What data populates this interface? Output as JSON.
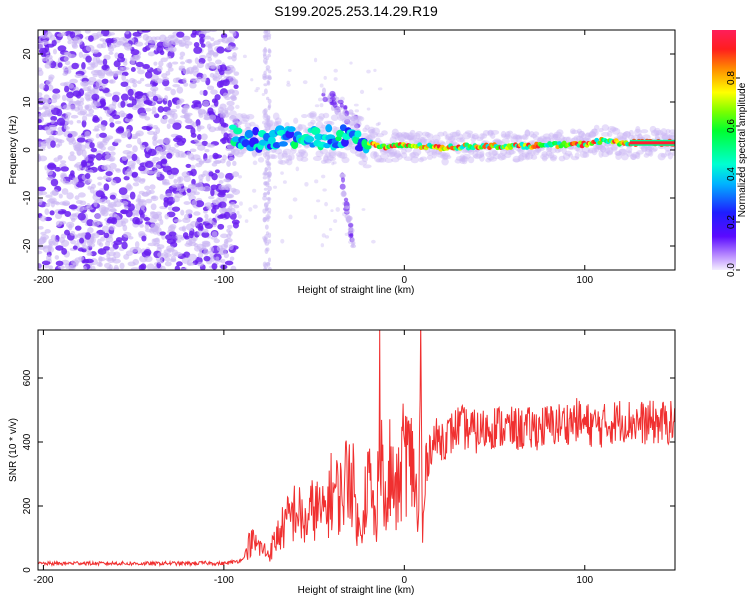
{
  "figure_title": "S199.2025.253.14.29.R19",
  "colors": {
    "snr_line": "#f03030",
    "weak": "#c9b6f3",
    "strong": "#6a1ef0",
    "axis": "#000000"
  },
  "chart_data": [
    {
      "type": "heatmap",
      "title": "",
      "xlabel": "Height of straight line (km)",
      "ylabel": "Frequency (Hz)",
      "xlim": [
        -203,
        150
      ],
      "ylim": [
        -25,
        25
      ],
      "xticks": [
        -200,
        -100,
        0,
        100
      ],
      "xtick_labels": [
        "-200",
        "-100",
        "0",
        "100"
      ],
      "yticks": [
        20,
        10,
        0,
        -10,
        -20
      ],
      "ytick_labels": [
        "20",
        "10",
        "0",
        "-10",
        "-20"
      ],
      "colorbar": {
        "label": "Normalized spectral amplitude",
        "range": [
          0,
          1
        ],
        "ticks": [
          0.0,
          0.2,
          0.4,
          0.6,
          0.8
        ],
        "tick_labels": [
          "0.0",
          "0.2",
          "0.4",
          "0.6",
          "0.8"
        ]
      },
      "features": [
        {
          "name": "noise-region",
          "x_range": [
            -203,
            -93
          ],
          "f_range": [
            -25,
            25
          ],
          "amplitude": "low 0.0-0.1"
        },
        {
          "name": "vertical-streak",
          "x": -76,
          "f_range": [
            -25,
            25
          ],
          "amplitude": "low"
        },
        {
          "name": "doppler-trace",
          "x": [
            -95,
            -80,
            -60,
            -45,
            -30,
            -20,
            -10,
            0,
            20,
            40,
            60,
            80,
            100,
            110,
            120,
            150
          ],
          "f": [
            3,
            2,
            2.5,
            2.5,
            3,
            1.5,
            0.5,
            1,
            0.5,
            0.8,
            0.8,
            1,
            1.2,
            2,
            1.5,
            1.5
          ],
          "amplitude": "0.2-1.0"
        },
        {
          "name": "faint-diagonal",
          "x": [
            -45,
            -25
          ],
          "f": [
            12,
            5
          ],
          "amplitude": "low"
        },
        {
          "name": "lower-branch",
          "x": [
            -35,
            -28
          ],
          "f": [
            -5,
            -20
          ],
          "amplitude": "low"
        }
      ]
    },
    {
      "type": "line",
      "title": "",
      "xlabel": "Height of straight line (km)",
      "ylabel": "SNR (10 * v/v)",
      "xlim": [
        -203,
        150
      ],
      "ylim": [
        0,
        750
      ],
      "xticks": [
        -200,
        -100,
        0,
        100
      ],
      "xtick_labels": [
        "-200",
        "-100",
        "0",
        "100"
      ],
      "yticks": [
        0,
        200,
        400,
        600
      ],
      "ytick_labels": [
        "0",
        "200",
        "400",
        "600"
      ],
      "series": [
        {
          "name": "SNR",
          "x": [
            -203,
            -190,
            -180,
            -170,
            -160,
            -150,
            -140,
            -130,
            -120,
            -110,
            -100,
            -95,
            -90,
            -85,
            -80,
            -75,
            -70,
            -65,
            -60,
            -55,
            -50,
            -45,
            -40,
            -35,
            -30,
            -25,
            -20,
            -15,
            -14,
            -12,
            -10,
            -8,
            -5,
            -3,
            0,
            3,
            5,
            8,
            9,
            10,
            12,
            15,
            20,
            25,
            30,
            40,
            50,
            60,
            70,
            80,
            90,
            95,
            100,
            110,
            120,
            130,
            140,
            150
          ],
          "values": [
            20,
            20,
            22,
            20,
            21,
            20,
            20,
            21,
            20,
            22,
            20,
            25,
            30,
            90,
            70,
            50,
            110,
            150,
            190,
            140,
            200,
            170,
            250,
            230,
            330,
            110,
            300,
            100,
            710,
            300,
            150,
            310,
            230,
            250,
            390,
            330,
            340,
            120,
            720,
            80,
            330,
            400,
            410,
            420,
            450,
            430,
            450,
            440,
            440,
            450,
            460,
            470,
            455,
            450,
            470,
            460,
            460,
            460
          ]
        }
      ]
    }
  ]
}
